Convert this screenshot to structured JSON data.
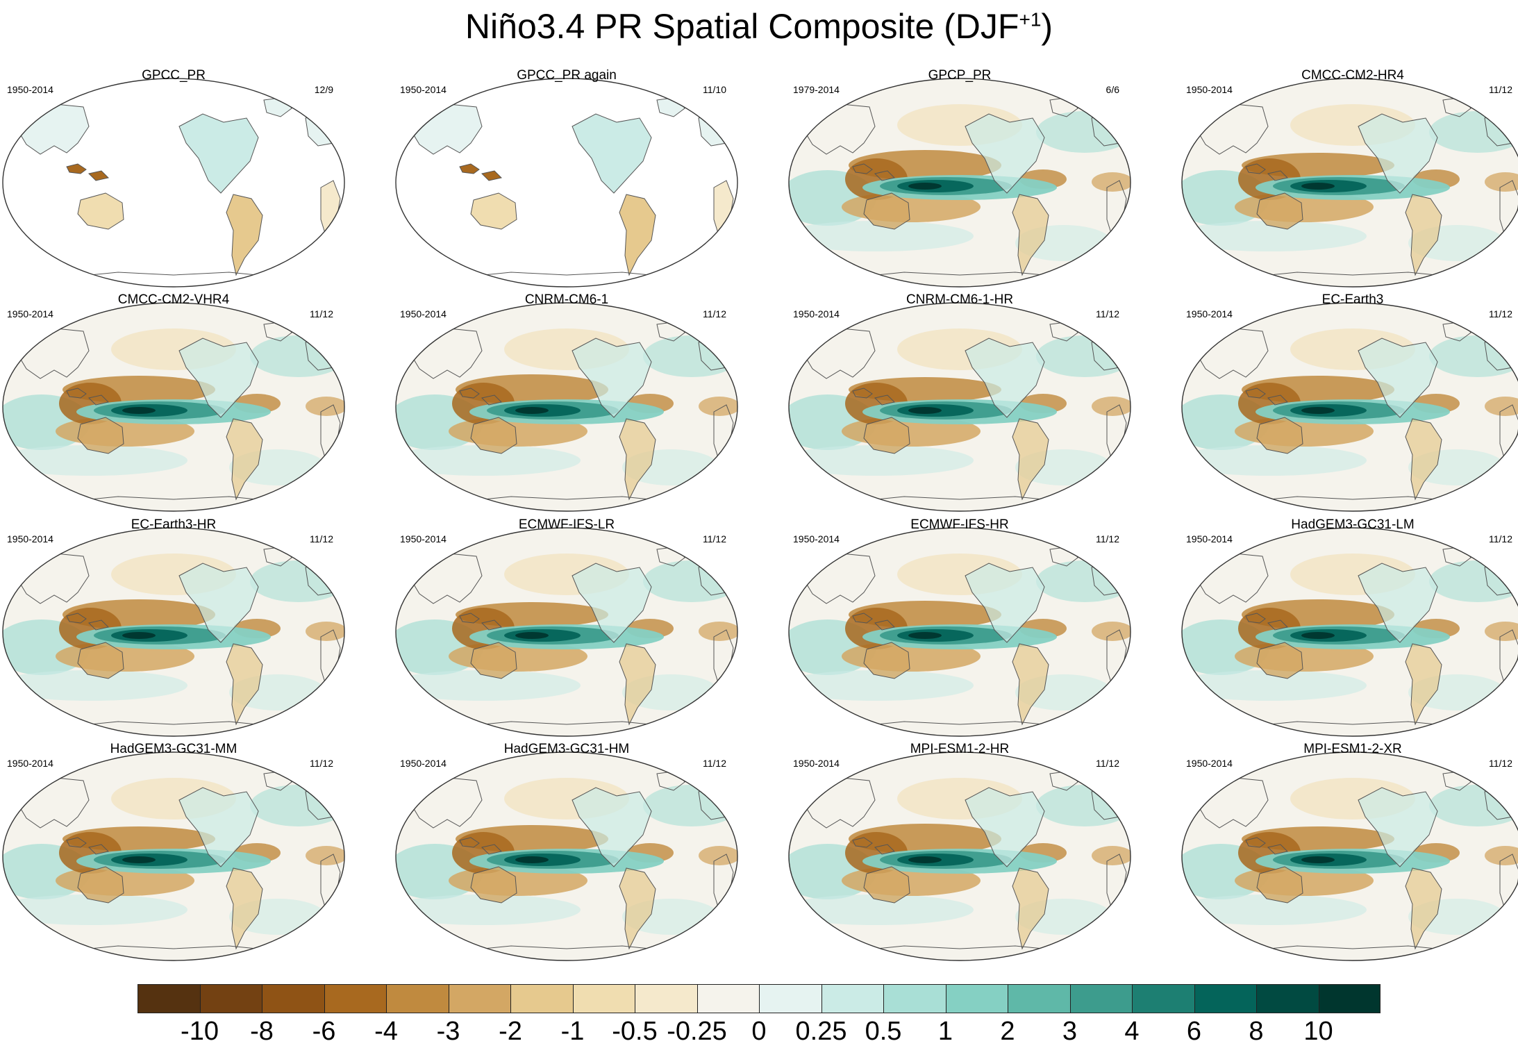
{
  "title": {
    "main": "Niño3.4 PR Spatial Composite (DJF",
    "sup": "+1",
    "close": ")"
  },
  "panels": [
    {
      "name": "GPCC_PR",
      "years": "1950-2014",
      "count": "12/9",
      "land_only": true
    },
    {
      "name": "GPCC_PR again",
      "years": "1950-2014",
      "count": "11/10",
      "land_only": true
    },
    {
      "name": "GPCP_PR",
      "years": "1979-2014",
      "count": "6/6",
      "land_only": false
    },
    {
      "name": "CMCC-CM2-HR4",
      "years": "1950-2014",
      "count": "11/12",
      "land_only": false
    },
    {
      "name": "CMCC-CM2-VHR4",
      "years": "1950-2014",
      "count": "11/12",
      "land_only": false
    },
    {
      "name": "CNRM-CM6-1",
      "years": "1950-2014",
      "count": "11/12",
      "land_only": false
    },
    {
      "name": "CNRM-CM6-1-HR",
      "years": "1950-2014",
      "count": "11/12",
      "land_only": false
    },
    {
      "name": "EC-Earth3",
      "years": "1950-2014",
      "count": "11/12",
      "land_only": false
    },
    {
      "name": "EC-Earth3-HR",
      "years": "1950-2014",
      "count": "11/12",
      "land_only": false
    },
    {
      "name": "ECMWF-IFS-LR",
      "years": "1950-2014",
      "count": "11/12",
      "land_only": false
    },
    {
      "name": "ECMWF-IFS-HR",
      "years": "1950-2014",
      "count": "11/12",
      "land_only": false
    },
    {
      "name": "HadGEM3-GC31-LM",
      "years": "1950-2014",
      "count": "11/12",
      "land_only": false
    },
    {
      "name": "HadGEM3-GC31-MM",
      "years": "1950-2014",
      "count": "11/12",
      "land_only": false
    },
    {
      "name": "HadGEM3-GC31-HM",
      "years": "1950-2014",
      "count": "11/12",
      "land_only": false
    },
    {
      "name": "MPI-ESM1-2-HR",
      "years": "1950-2014",
      "count": "11/12",
      "land_only": false
    },
    {
      "name": "MPI-ESM1-2-XR",
      "years": "1950-2014",
      "count": "11/12",
      "land_only": false
    }
  ],
  "colorbar": {
    "labels": [
      "-10",
      "-8",
      "-6",
      "-4",
      "-3",
      "-2",
      "-1",
      "-0.5",
      "-0.25",
      "0",
      "0.25",
      "0.5",
      "1",
      "2",
      "3",
      "4",
      "6",
      "8",
      "10"
    ],
    "colors": [
      "#553210",
      "#734112",
      "#8f5315",
      "#a8691f",
      "#c08a3f",
      "#d3a764",
      "#e6c98e",
      "#f0ddb0",
      "#f5e9cc",
      "#f5f3ec",
      "#e6f3f1",
      "#cbebe6",
      "#a9dfd6",
      "#85d0c3",
      "#5fb8a8",
      "#3d9c8d",
      "#1d7f72",
      "#04645a",
      "#014a41",
      "#00362e"
    ],
    "color_meaning": "brown = drier, teal = wetter"
  }
}
